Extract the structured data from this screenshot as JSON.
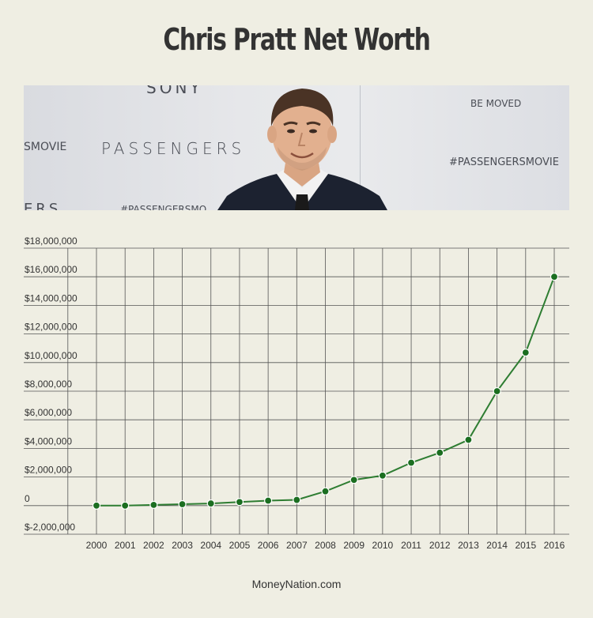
{
  "page": {
    "title": "Chris Pratt Net Worth",
    "footer": "MoneyNation.com"
  },
  "photo": {
    "wall_text": {
      "sony": "SONY",
      "movie_left": "SMOVIE",
      "passengers": "PASSENGERS",
      "be_moved": "BE MOVED",
      "hashtag_right": "#PASSENGERSMOVIE",
      "hashtag_bottom": "#PASSENGERSMO",
      "bottom_left": "ERS"
    }
  },
  "colors": {
    "line": "#2e7d32",
    "marker": "#1b6e20",
    "grid": "#555555",
    "background": "#efeee3"
  },
  "chart_data": {
    "type": "line",
    "x": [
      "2000",
      "2001",
      "2002",
      "2003",
      "2004",
      "2005",
      "2006",
      "2007",
      "2008",
      "2009",
      "2010",
      "2011",
      "2012",
      "2013",
      "2014",
      "2015",
      "2016"
    ],
    "series": [
      {
        "values": [
          0,
          0,
          50000,
          100000,
          150000,
          250000,
          350000,
          400000,
          1000000,
          1800000,
          2100000,
          3000000,
          3700000,
          4600000,
          8000000,
          10700000,
          16000000
        ]
      }
    ],
    "y_ticks": [
      -2000000,
      0,
      2000000,
      4000000,
      6000000,
      8000000,
      10000000,
      12000000,
      14000000,
      16000000,
      18000000
    ],
    "y_tick_labels": [
      "$-2,000,000",
      "0",
      "$2,000,000",
      "$4,000,000",
      "$6,000,000",
      "$8,000,000",
      "$10,000,000",
      "$12,000,000",
      "$14,000,000",
      "$16,000,000",
      "$18,000,000"
    ],
    "ylim": [
      -2000000,
      18000000
    ],
    "grid": true,
    "legend": "none"
  }
}
